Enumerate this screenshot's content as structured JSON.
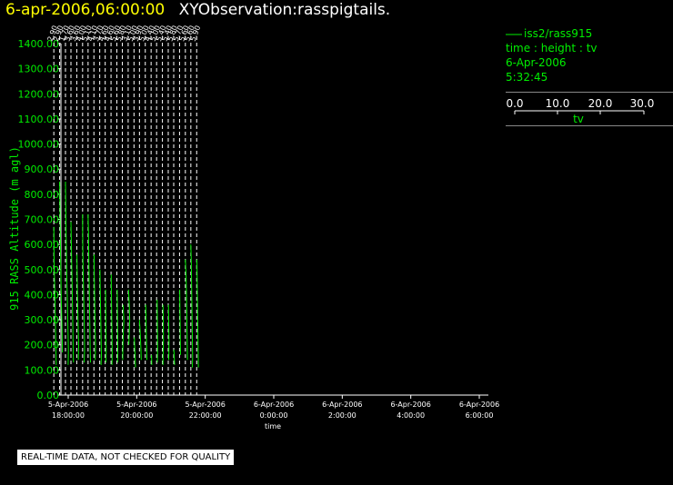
{
  "header": {
    "date": "6-apr-2006,06:00:00",
    "title": "XYObservation:rasspigtails."
  },
  "legend": {
    "series": "iss2/rass915",
    "fields": "time : height : tv",
    "date": "6-Apr-2006",
    "time": "5:32:45",
    "scale_ticks": [
      "0.0",
      "10.0",
      "20.0",
      "30.0"
    ],
    "scale_label": "tv"
  },
  "footer": "REAL-TIME DATA, NOT CHECKED FOR QUALITY",
  "colors": {
    "trace": "#00ee00",
    "axis": "#ffffff",
    "header_date": "#ffff00"
  },
  "chart_data": {
    "type": "line",
    "ylabel": "915 RASS Altitude (m agl)",
    "xlabel": "time",
    "ylim": [
      0,
      1400
    ],
    "yticks": [
      "0.00",
      "100.00",
      "200.00",
      "300.00",
      "400.00",
      "500.00",
      "600.00",
      "700.00",
      "800.00",
      "900.00",
      "1000.00",
      "1100.00",
      "1200.00",
      "1300.00",
      "1400.00"
    ],
    "xlim_hours": [
      17.5,
      24.5
    ],
    "xticks": [
      {
        "h": 18,
        "date": "5-Apr-2006",
        "time": "18:00:00"
      },
      {
        "h": 20,
        "date": "5-Apr-2006",
        "time": "20:00:00"
      },
      {
        "h": 22,
        "date": "5-Apr-2006",
        "time": "22:00:00"
      },
      {
        "h": 24,
        "date": "6-Apr-2006",
        "time": "0:00:00"
      },
      {
        "h": 26,
        "date": "6-Apr-2006",
        "time": "2:00:00"
      },
      {
        "h": 28,
        "date": "6-Apr-2006",
        "time": "4:00:00"
      },
      {
        "h": 30,
        "date": "6-Apr-2006",
        "time": "6:00:00"
      }
    ],
    "tv_scale_hours_per_30": 1.0,
    "scans": [
      {
        "t": 17.58,
        "label": "2.90",
        "pts": [
          [
            670,
            0.0
          ],
          [
            560,
            0.1
          ],
          [
            480,
            0.3
          ],
          [
            400,
            0.55
          ],
          [
            330,
            0.75
          ],
          [
            250,
            0.95
          ],
          [
            170,
            1.1
          ],
          [
            120,
            1.25
          ]
        ]
      },
      {
        "t": 17.75,
        "label": "2.90",
        "pts": [
          [
            850,
            0.0
          ],
          [
            720,
            0.2
          ],
          [
            640,
            0.35
          ],
          [
            560,
            0.5
          ],
          [
            470,
            0.7
          ],
          [
            380,
            0.9
          ],
          [
            280,
            1.2
          ],
          [
            170,
            1.45
          ]
        ]
      },
      {
        "t": 17.92,
        "label": "1.70",
        "pts": [
          [
            850,
            0.0
          ],
          [
            740,
            0.2
          ],
          [
            640,
            0.35
          ],
          [
            560,
            0.55
          ],
          [
            460,
            0.75
          ],
          [
            380,
            1.0
          ],
          [
            270,
            1.3
          ],
          [
            180,
            1.55
          ],
          [
            120,
            1.4
          ]
        ]
      },
      {
        "t": 18.08,
        "label": "3.60",
        "pts": [
          [
            690,
            0.0
          ],
          [
            600,
            0.25
          ],
          [
            510,
            0.45
          ],
          [
            420,
            0.65
          ],
          [
            330,
            0.85
          ],
          [
            250,
            1.05
          ],
          [
            170,
            1.2
          ],
          [
            130,
            1.35
          ]
        ]
      },
      {
        "t": 18.25,
        "label": "3.60",
        "pts": [
          [
            560,
            0.1
          ],
          [
            470,
            0.25
          ],
          [
            380,
            0.45
          ],
          [
            280,
            0.7
          ],
          [
            200,
            1.0
          ],
          [
            140,
            0.8
          ]
        ]
      },
      {
        "t": 18.42,
        "label": "4.00",
        "pts": [
          [
            720,
            0.0
          ],
          [
            600,
            0.1
          ],
          [
            500,
            0.3
          ],
          [
            420,
            0.5
          ],
          [
            330,
            0.75
          ],
          [
            250,
            0.95
          ],
          [
            180,
            1.05
          ],
          [
            130,
            0.8
          ]
        ]
      },
      {
        "t": 18.58,
        "label": "5.10",
        "pts": [
          [
            720,
            0.0
          ],
          [
            650,
            0.2
          ],
          [
            560,
            0.35
          ],
          [
            460,
            0.55
          ],
          [
            360,
            0.75
          ],
          [
            270,
            0.95
          ],
          [
            170,
            1.15
          ],
          [
            130,
            1.3
          ]
        ]
      },
      {
        "t": 18.75,
        "label": "4.10",
        "pts": [
          [
            560,
            0.1
          ],
          [
            470,
            0.2
          ],
          [
            380,
            0.4
          ],
          [
            280,
            0.6
          ],
          [
            200,
            0.85
          ],
          [
            140,
            0.7
          ]
        ]
      },
      {
        "t": 18.92,
        "label": "3.70",
        "pts": [
          [
            500,
            0.1
          ],
          [
            420,
            0.25
          ],
          [
            320,
            0.5
          ],
          [
            240,
            0.7
          ],
          [
            160,
            0.9
          ],
          [
            120,
            0.7
          ]
        ]
      },
      {
        "t": 19.08,
        "label": "4.60",
        "pts": [
          [
            420,
            0.2
          ],
          [
            340,
            0.3
          ],
          [
            260,
            0.4
          ],
          [
            180,
            0.55
          ],
          [
            130,
            0.4
          ]
        ]
      },
      {
        "t": 19.25,
        "label": "4.60",
        "pts": [
          [
            480,
            0.1
          ],
          [
            400,
            0.2
          ],
          [
            320,
            0.35
          ],
          [
            240,
            0.5
          ],
          [
            170,
            0.6
          ],
          [
            120,
            0.5
          ]
        ]
      },
      {
        "t": 19.42,
        "label": "5.60",
        "pts": [
          [
            420,
            0.2
          ],
          [
            340,
            0.3
          ],
          [
            260,
            0.4
          ],
          [
            190,
            0.5
          ],
          [
            130,
            0.4
          ]
        ]
      },
      {
        "t": 19.58,
        "label": "5.80",
        "pts": [
          [
            360,
            0.4
          ],
          [
            300,
            0.8
          ],
          [
            240,
            0.5
          ],
          [
            190,
            0.3
          ],
          [
            140,
            0.2
          ]
        ]
      },
      {
        "t": 19.75,
        "label": "3.10",
        "pts": [
          [
            420,
            0.2
          ],
          [
            360,
            0.55
          ],
          [
            300,
            0.8
          ],
          [
            250,
            0.55
          ],
          [
            200,
            0.35
          ]
        ]
      },
      {
        "t": 19.92,
        "label": "5.00",
        "pts": [
          [
            230,
            0.2
          ],
          [
            190,
            0.4
          ],
          [
            150,
            0.6
          ],
          [
            110,
            0.8
          ]
        ]
      },
      {
        "t": 20.08,
        "label": "3.90",
        "pts": [
          [
            300,
            0.0
          ],
          [
            260,
            0.3
          ],
          [
            220,
            0.55
          ],
          [
            180,
            0.8
          ],
          [
            140,
            0.95
          ]
        ]
      },
      {
        "t": 20.25,
        "label": "5.00",
        "pts": [
          [
            360,
            0.2
          ],
          [
            300,
            0.4
          ],
          [
            240,
            0.55
          ],
          [
            190,
            0.7
          ],
          [
            140,
            0.85
          ]
        ]
      },
      {
        "t": 20.42,
        "label": "4.40",
        "pts": [
          [
            160,
            0.2
          ],
          [
            120,
            0.35
          ]
        ]
      },
      {
        "t": 20.58,
        "label": "5.00",
        "pts": [
          [
            380,
            0.3
          ],
          [
            300,
            0.4
          ],
          [
            240,
            0.5
          ],
          [
            180,
            0.55
          ],
          [
            130,
            0.4
          ]
        ]
      },
      {
        "t": 20.75,
        "label": "5.40",
        "pts": [
          [
            360,
            0.3
          ],
          [
            290,
            0.5
          ],
          [
            220,
            0.55
          ],
          [
            170,
            0.4
          ],
          [
            120,
            0.3
          ]
        ]
      },
      {
        "t": 20.92,
        "label": "5.40",
        "pts": [
          [
            360,
            0.1
          ],
          [
            290,
            0.25
          ],
          [
            220,
            0.4
          ],
          [
            170,
            0.35
          ],
          [
            140,
            0.25
          ]
        ]
      },
      {
        "t": 21.08,
        "label": "5.80",
        "pts": [
          [
            180,
            0.1
          ],
          [
            150,
            0.3
          ],
          [
            120,
            0.5
          ]
        ]
      },
      {
        "t": 21.25,
        "label": "5.70",
        "pts": [
          [
            420,
            0.1
          ],
          [
            350,
            0.2
          ],
          [
            280,
            0.35
          ],
          [
            210,
            0.45
          ],
          [
            160,
            0.5
          ]
        ]
      },
      {
        "t": 21.42,
        "label": "5.60",
        "pts": [
          [
            540,
            0.0
          ],
          [
            480,
            0.4
          ],
          [
            410,
            0.55
          ],
          [
            340,
            0.7
          ],
          [
            270,
            0.85
          ],
          [
            200,
            1.0
          ],
          [
            140,
            1.1
          ]
        ]
      },
      {
        "t": 21.58,
        "label": "5.60",
        "pts": [
          [
            600,
            0.0
          ],
          [
            540,
            0.2
          ],
          [
            460,
            0.35
          ],
          [
            380,
            0.5
          ],
          [
            300,
            0.65
          ],
          [
            230,
            0.8
          ],
          [
            150,
            0.95
          ],
          [
            110,
            0.8
          ]
        ]
      },
      {
        "t": 21.75,
        "label": "5.90",
        "pts": [
          [
            540,
            0.1
          ],
          [
            460,
            0.25
          ],
          [
            380,
            0.4
          ],
          [
            300,
            0.55
          ],
          [
            220,
            0.7
          ],
          [
            150,
            0.85
          ],
          [
            110,
            0.9
          ]
        ]
      }
    ]
  }
}
